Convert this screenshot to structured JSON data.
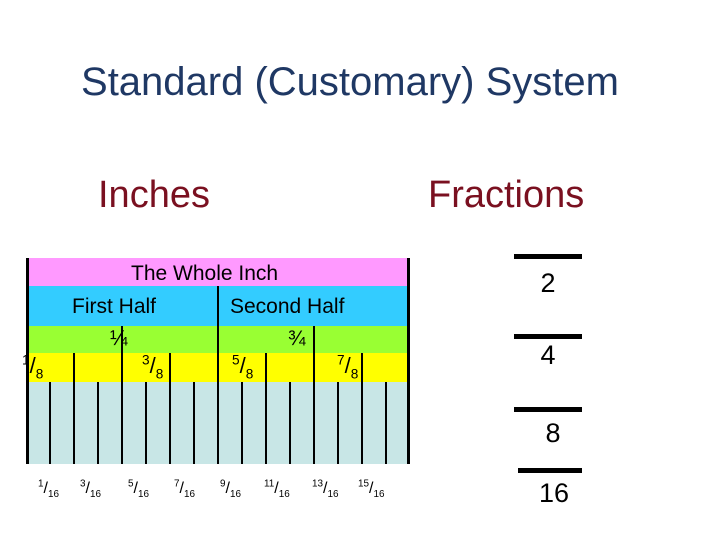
{
  "title": "Standard (Customary) System",
  "headings": {
    "inches": "Inches",
    "fractions": "Fractions"
  },
  "ruler": {
    "whole": "The Whole Inch",
    "first_half": "First Half",
    "second_half": "Second Half",
    "quarters": [
      "¼",
      "¾"
    ],
    "eighths": [
      {
        "num": "1",
        "den": "8"
      },
      {
        "num": "3",
        "den": "8"
      },
      {
        "num": "5",
        "den": "8"
      },
      {
        "num": "7",
        "den": "8"
      }
    ],
    "sixteenths": [
      {
        "num": "1",
        "den": "16"
      },
      {
        "num": "3",
        "den": "16"
      },
      {
        "num": "5",
        "den": "16"
      },
      {
        "num": "7",
        "den": "16"
      },
      {
        "num": "9",
        "den": "16"
      },
      {
        "num": "11",
        "den": "16"
      },
      {
        "num": "13",
        "den": "16"
      },
      {
        "num": "15",
        "den": "16"
      }
    ],
    "colors": {
      "whole": "#ff99ff",
      "half": "#33ccff",
      "quarter": "#99ff33",
      "eighth": "#ffff00",
      "sixteenth": "#c8e6e6"
    }
  },
  "denominators": [
    "2",
    "4",
    "8",
    "16"
  ]
}
